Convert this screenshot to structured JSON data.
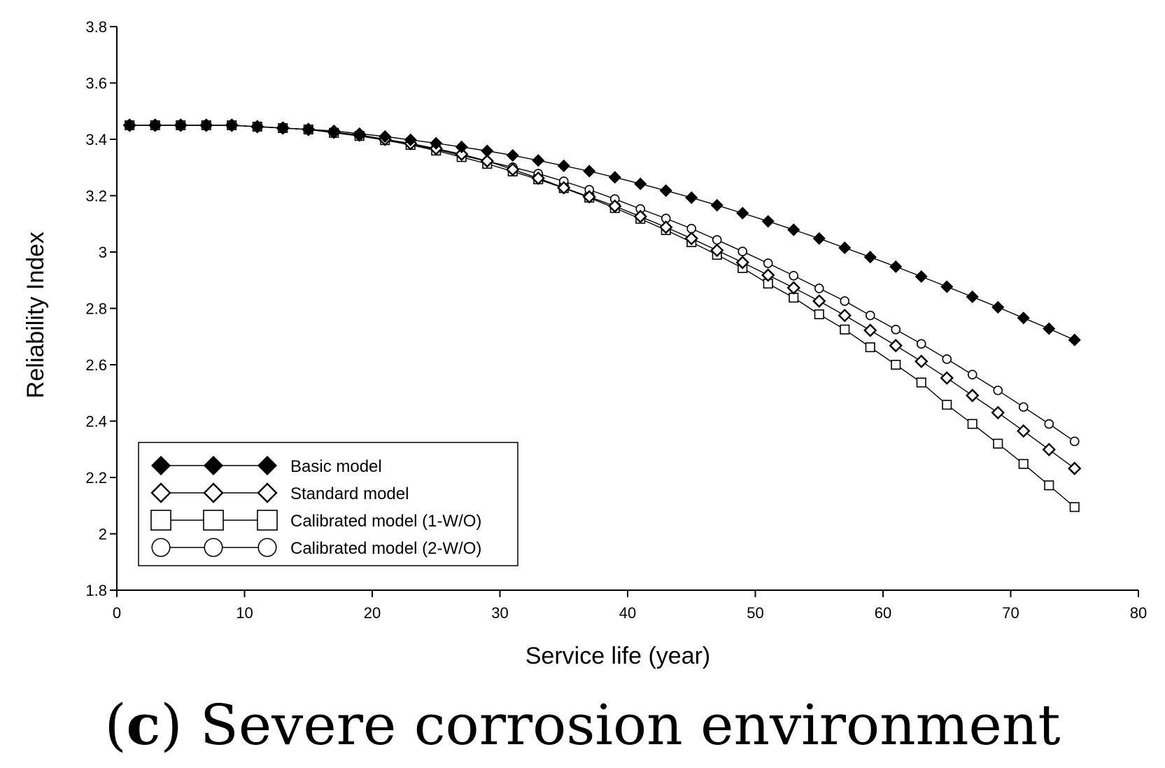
{
  "chart_data": {
    "type": "line",
    "title": "",
    "xlabel": "Service life (year)",
    "ylabel": "Reliability Index",
    "xlim": [
      0,
      80
    ],
    "ylim": [
      1.8,
      3.8
    ],
    "xticks": [
      0,
      10,
      20,
      30,
      40,
      50,
      60,
      70,
      80
    ],
    "yticks": [
      1.8,
      2,
      2.2,
      2.4,
      2.6,
      2.8,
      3,
      3.2,
      3.4,
      3.6,
      3.8
    ],
    "ytick_labels": [
      "1.8",
      "2",
      "2.2",
      "2.4",
      "2.6",
      "2.8",
      "3",
      "3.2",
      "3.4",
      "3.6",
      "3.8"
    ],
    "grid": false,
    "legend_position": "bottom-left",
    "x": [
      1,
      3,
      5,
      7,
      9,
      11,
      13,
      15,
      17,
      19,
      21,
      23,
      25,
      27,
      29,
      31,
      33,
      35,
      37,
      39,
      41,
      43,
      45,
      47,
      49,
      51,
      53,
      55,
      57,
      59,
      61,
      63,
      65,
      67,
      69,
      71,
      73,
      75
    ],
    "series": [
      {
        "name": "Basic model",
        "marker": "diamond-filled",
        "values": [
          3.45,
          3.45,
          3.45,
          3.45,
          3.45,
          3.445,
          3.44,
          3.435,
          3.43,
          3.42,
          3.41,
          3.398,
          3.386,
          3.373,
          3.359,
          3.343,
          3.325,
          3.306,
          3.287,
          3.265,
          3.242,
          3.218,
          3.193,
          3.166,
          3.138,
          3.109,
          3.079,
          3.048,
          3.015,
          2.982,
          2.948,
          2.913,
          2.877,
          2.841,
          2.804,
          2.766,
          2.728,
          2.688
        ]
      },
      {
        "name": "Standard model",
        "marker": "diamond-open",
        "values": [
          3.45,
          3.45,
          3.45,
          3.45,
          3.45,
          3.445,
          3.44,
          3.435,
          3.425,
          3.415,
          3.4,
          3.385,
          3.367,
          3.347,
          3.323,
          3.293,
          3.262,
          3.228,
          3.196,
          3.163,
          3.126,
          3.088,
          3.048,
          3.006,
          2.963,
          2.918,
          2.873,
          2.826,
          2.775,
          2.722,
          2.668,
          2.612,
          2.553,
          2.491,
          2.43,
          2.365,
          2.299,
          2.232
        ]
      },
      {
        "name": "Calibrated model (1-W/O)",
        "marker": "square-open",
        "values": [
          3.45,
          3.45,
          3.45,
          3.45,
          3.45,
          3.445,
          3.44,
          3.435,
          3.423,
          3.412,
          3.397,
          3.38,
          3.36,
          3.337,
          3.313,
          3.286,
          3.258,
          3.227,
          3.193,
          3.156,
          3.118,
          3.078,
          3.035,
          2.99,
          2.943,
          2.888,
          2.838,
          2.779,
          2.725,
          2.662,
          2.6,
          2.537,
          2.458,
          2.39,
          2.32,
          2.248,
          2.172,
          2.095
        ]
      },
      {
        "name": "Calibrated model (2-W/O)",
        "marker": "circle-open",
        "values": [
          3.45,
          3.45,
          3.45,
          3.45,
          3.45,
          3.445,
          3.44,
          3.435,
          3.425,
          3.415,
          3.4,
          3.383,
          3.364,
          3.343,
          3.322,
          3.301,
          3.278,
          3.251,
          3.221,
          3.188,
          3.153,
          3.119,
          3.083,
          3.043,
          3.002,
          2.96,
          2.916,
          2.871,
          2.826,
          2.775,
          2.725,
          2.674,
          2.62,
          2.565,
          2.509,
          2.45,
          2.39,
          2.328
        ]
      }
    ]
  },
  "caption": {
    "letter": "c",
    "text": "Severe corrosion environment"
  }
}
